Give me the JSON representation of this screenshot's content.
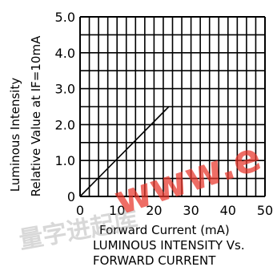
{
  "chart_data": {
    "type": "line",
    "title": "",
    "caption_line1": "LUMINOUS INTENSITY Vs.",
    "caption_line2": "FORWARD CURRENT",
    "xlabel": "Forward Current (mA)",
    "ylabel_line1": "Luminous Intensity",
    "ylabel_line2": "Relative Value at IF=10mA",
    "xlim": [
      0,
      50
    ],
    "ylim": [
      0,
      5.0
    ],
    "x_ticks": [
      "0",
      "10",
      "20",
      "30",
      "40",
      "50"
    ],
    "y_ticks": [
      "0",
      "1.0",
      "2.0",
      "3.0",
      "4.0",
      "5.0"
    ],
    "grid": true,
    "series": [
      {
        "x": [
          0,
          24
        ],
        "y": [
          0,
          2.5
        ]
      }
    ]
  },
  "watermark": {
    "red_text": "www.e",
    "grey_text": "量字进起库"
  },
  "colors": {
    "line": "#000000",
    "grid": "#000000",
    "watermark_red": "#e8352a"
  }
}
